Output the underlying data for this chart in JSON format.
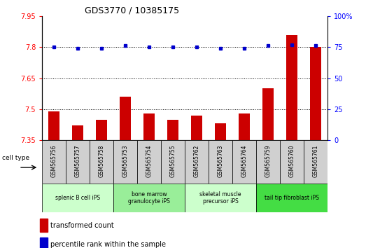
{
  "title": "GDS3770 / 10385175",
  "samples": [
    "GSM565756",
    "GSM565757",
    "GSM565758",
    "GSM565753",
    "GSM565754",
    "GSM565755",
    "GSM565762",
    "GSM565763",
    "GSM565764",
    "GSM565759",
    "GSM565760",
    "GSM565761"
  ],
  "transformed_count": [
    7.49,
    7.42,
    7.45,
    7.56,
    7.48,
    7.45,
    7.47,
    7.43,
    7.48,
    7.6,
    7.86,
    7.8
  ],
  "percentile_rank": [
    75,
    74,
    74,
    76,
    75,
    75,
    75,
    74,
    74,
    76,
    77,
    76
  ],
  "ylim_left": [
    7.35,
    7.95
  ],
  "ylim_right": [
    0,
    100
  ],
  "yticks_left": [
    7.35,
    7.5,
    7.65,
    7.8,
    7.95
  ],
  "ytick_labels_left": [
    "7.35",
    "7.5",
    "7.65",
    "7.8",
    "7.95"
  ],
  "yticks_right": [
    0,
    25,
    50,
    75,
    100
  ],
  "ytick_labels_right": [
    "0",
    "25",
    "50",
    "75",
    "100%"
  ],
  "bar_color": "#cc0000",
  "dot_color": "#0000cc",
  "dot_size": 4,
  "cell_types": [
    {
      "label": "splenic B cell iPS",
      "start": 0,
      "end": 3,
      "color": "#ccffcc"
    },
    {
      "label": "bone marrow\ngranulocyte iPS",
      "start": 3,
      "end": 6,
      "color": "#99ee99"
    },
    {
      "label": "skeletal muscle\nprecursor iPS",
      "start": 6,
      "end": 9,
      "color": "#ccffcc"
    },
    {
      "label": "tail tip fibroblast iPS",
      "start": 9,
      "end": 12,
      "color": "#44dd44"
    }
  ],
  "bar_width": 0.45,
  "legend_items": [
    {
      "label": "transformed count",
      "color": "#cc0000"
    },
    {
      "label": "percentile rank within the sample",
      "color": "#0000cc"
    }
  ],
  "sample_box_color": "#d0d0d0",
  "cell_type_label": "cell type"
}
